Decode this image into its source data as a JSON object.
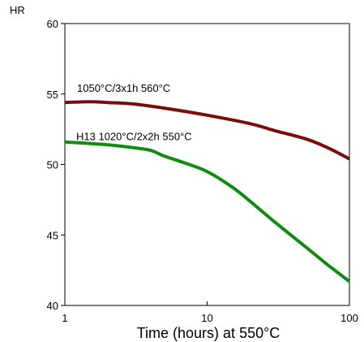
{
  "chart_data": {
    "type": "line",
    "title": "",
    "xlabel": "Time (hours) at 550°C",
    "ylabel": "HR",
    "xscale": "log",
    "xlim": [
      1,
      100
    ],
    "ylim": [
      40,
      60
    ],
    "xticks": [
      1,
      10,
      100
    ],
    "yticks": [
      40,
      45,
      50,
      55,
      60
    ],
    "grid": false,
    "legend": "none",
    "series": [
      {
        "name": "1050°C/3x1h 560°C",
        "color": "#7b0c0c",
        "x": [
          1,
          1.5,
          2,
          3,
          5,
          10,
          20,
          30,
          50,
          70,
          100
        ],
        "y": [
          54.4,
          54.45,
          54.4,
          54.3,
          54.0,
          53.5,
          52.9,
          52.4,
          51.8,
          51.2,
          50.4
        ]
      },
      {
        "name": "H13 1020°C/2x2h 550°C",
        "color": "#138a13",
        "x": [
          1,
          2,
          3,
          4,
          5,
          7,
          10,
          15,
          20,
          30,
          50,
          70,
          100
        ],
        "y": [
          51.6,
          51.4,
          51.2,
          51.0,
          50.6,
          50.1,
          49.5,
          48.4,
          47.4,
          45.9,
          44.1,
          42.9,
          41.7
        ]
      }
    ]
  }
}
